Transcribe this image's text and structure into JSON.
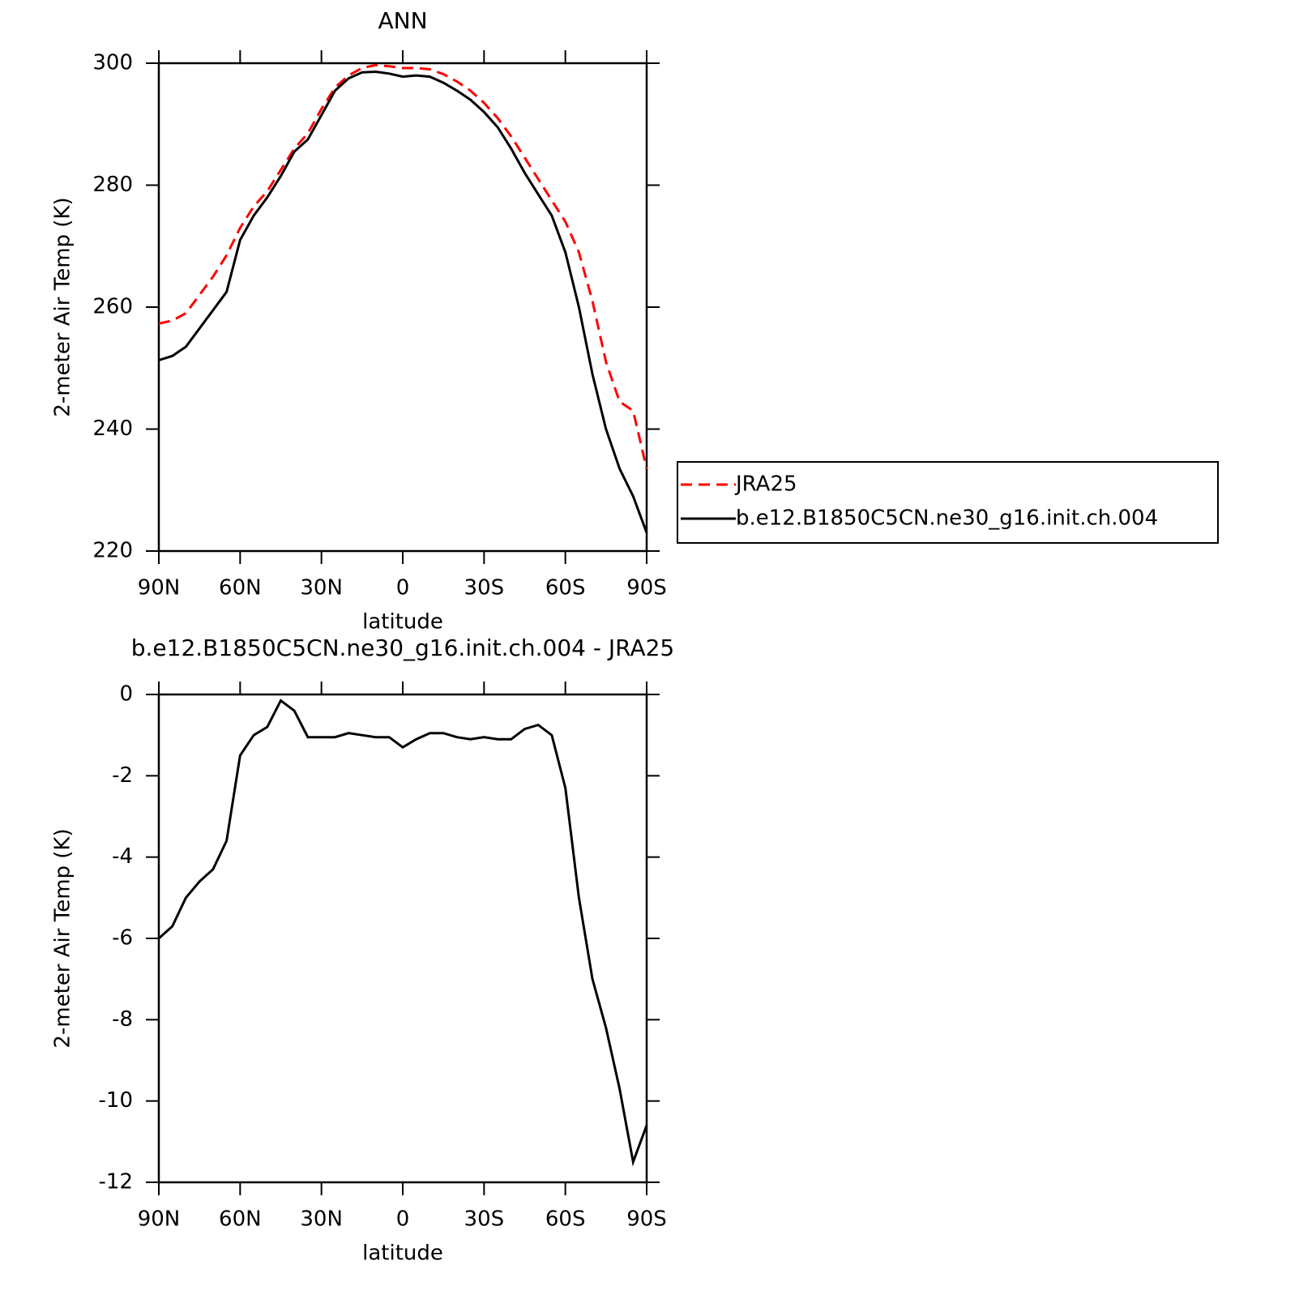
{
  "chart_data": [
    {
      "type": "line",
      "title": "ANN",
      "xlabel": "latitude",
      "ylabel": "2-meter Air Temp (K)",
      "xlim": [
        90,
        -90
      ],
      "ylim": [
        220,
        300
      ],
      "xticks": [
        {
          "value": 90,
          "label": "90N"
        },
        {
          "value": 60,
          "label": "60N"
        },
        {
          "value": 30,
          "label": "30N"
        },
        0,
        {
          "value": -30,
          "label": "30S"
        },
        {
          "value": -60,
          "label": "60S"
        },
        {
          "value": -90,
          "label": "90S"
        }
      ],
      "yticks": [
        220,
        240,
        260,
        280,
        300
      ],
      "legend": "right",
      "x": [
        90,
        85,
        80,
        75,
        70,
        65,
        60,
        55,
        50,
        45,
        40,
        35,
        30,
        25,
        20,
        15,
        10,
        5,
        0,
        -5,
        -10,
        -15,
        -20,
        -25,
        -30,
        -35,
        -40,
        -45,
        -50,
        -55,
        -60,
        -65,
        -70,
        -75,
        -80,
        -85,
        -90
      ],
      "series": [
        {
          "name": "JRA25",
          "color": "#ff0000",
          "dash": true,
          "values": [
            257.3,
            257.8,
            259,
            262,
            265,
            268.5,
            273,
            276.5,
            279,
            282.5,
            286,
            288.5,
            292.5,
            296,
            298,
            299.2,
            299.7,
            299.5,
            299.2,
            299.2,
            299,
            298.2,
            297,
            295.5,
            293.5,
            291,
            288,
            284.5,
            281,
            277.5,
            274,
            269,
            261,
            251,
            244.5,
            243,
            233.5
          ]
        },
        {
          "name": "b.e12.B1850C5CN.ne30_g16.init.ch.004",
          "color": "#000000",
          "dash": false,
          "values": [
            251.3,
            252,
            253.5,
            256.5,
            259.5,
            262.5,
            271,
            275,
            278,
            281.5,
            285.5,
            287.5,
            291.5,
            295.5,
            297.5,
            298.5,
            298.6,
            298.3,
            297.8,
            298,
            297.8,
            296.8,
            295.5,
            294,
            292,
            289.5,
            286,
            282,
            278.5,
            275,
            269,
            260,
            249,
            240,
            233.5,
            229,
            223
          ]
        }
      ]
    },
    {
      "type": "line",
      "title": "b.e12.B1850C5CN.ne30_g16.init.ch.004 - JRA25",
      "xlabel": "latitude",
      "ylabel": "2-meter Air Temp (K)",
      "xlim": [
        90,
        -90
      ],
      "ylim": [
        -12,
        0
      ],
      "xticks": [
        {
          "value": 90,
          "label": "90N"
        },
        {
          "value": 60,
          "label": "60N"
        },
        {
          "value": 30,
          "label": "30N"
        },
        0,
        {
          "value": -30,
          "label": "30S"
        },
        {
          "value": -60,
          "label": "60S"
        },
        {
          "value": -90,
          "label": "90S"
        }
      ],
      "yticks": [
        -12,
        -10,
        -8,
        -6,
        -4,
        -2,
        0
      ],
      "x": [
        90,
        85,
        80,
        75,
        70,
        65,
        60,
        55,
        50,
        45,
        40,
        35,
        30,
        25,
        20,
        15,
        10,
        5,
        0,
        -5,
        -10,
        -15,
        -20,
        -25,
        -30,
        -35,
        -40,
        -45,
        -50,
        -55,
        -60,
        -65,
        -70,
        -75,
        -80,
        -85,
        -90
      ],
      "series": [
        {
          "color": "#000000",
          "dash": false,
          "values": [
            -6.0,
            -5.7,
            -5.0,
            -4.6,
            -4.3,
            -3.6,
            -1.5,
            -1.0,
            -0.8,
            -0.15,
            -0.4,
            -1.05,
            -1.05,
            -1.05,
            -0.95,
            -1.0,
            -1.05,
            -1.05,
            -1.3,
            -1.1,
            -0.95,
            -0.95,
            -1.05,
            -1.1,
            -1.05,
            -1.1,
            -1.1,
            -0.85,
            -0.75,
            -1.0,
            -2.3,
            -5.0,
            -7.0,
            -8.2,
            -9.7,
            -11.5,
            -10.6
          ]
        }
      ]
    }
  ]
}
